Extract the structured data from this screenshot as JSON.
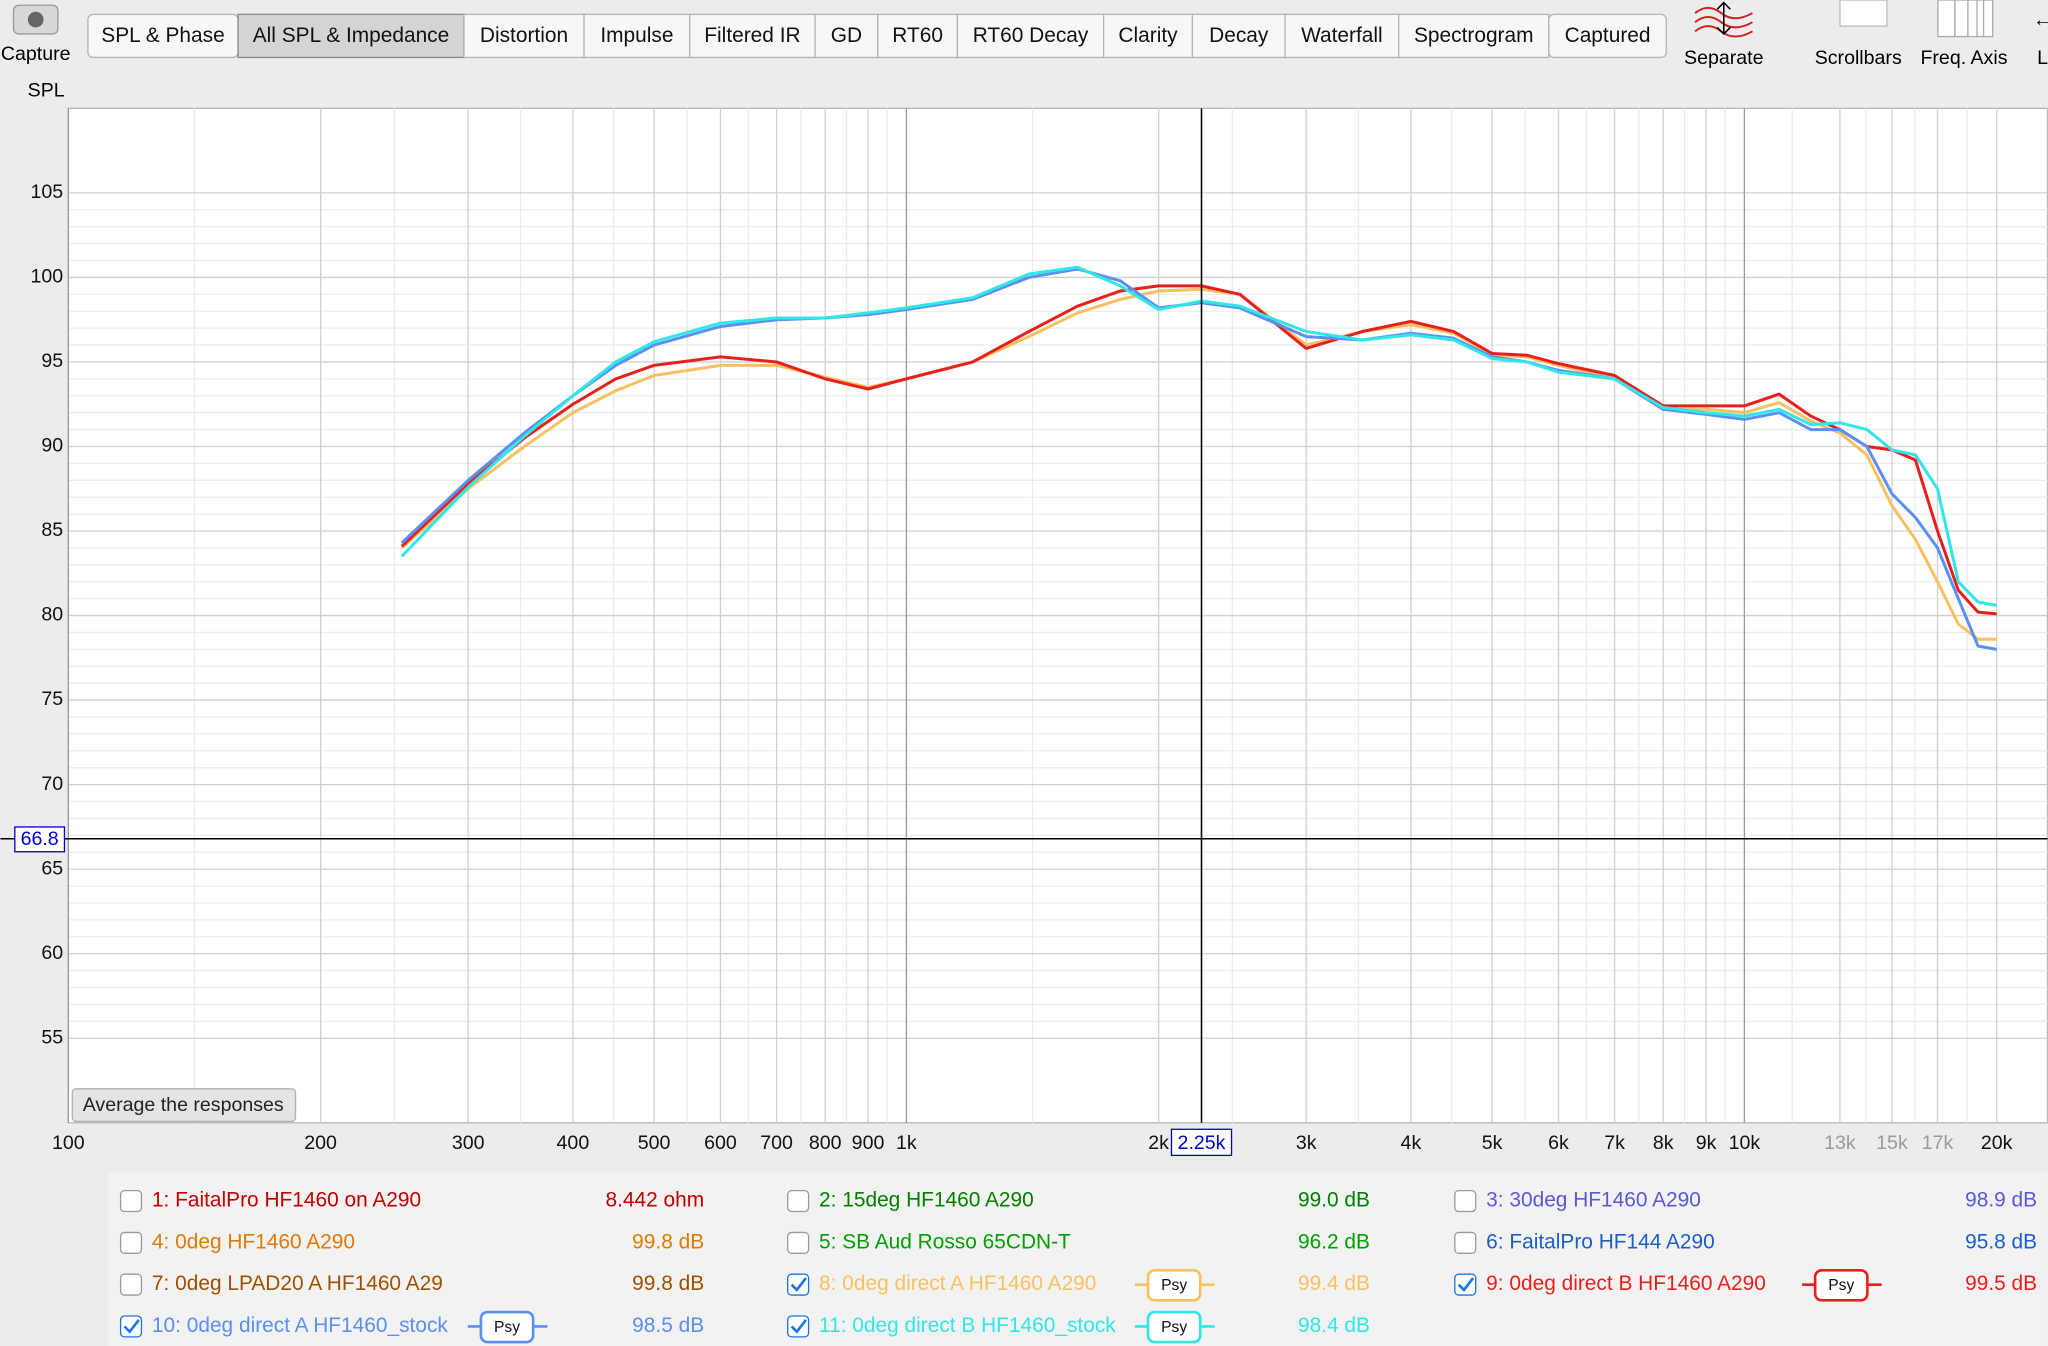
{
  "toolbar": {
    "capture": "Capture",
    "tabs": [
      "SPL & Phase",
      "All SPL & Impedance",
      "Distortion",
      "Impulse",
      "Filtered IR",
      "GD",
      "RT60",
      "RT60 Decay",
      "Clarity",
      "Decay",
      "Waterfall",
      "Spectrogram",
      "Captured"
    ],
    "selected_tab": 1,
    "tools": [
      "Separate",
      "Scrollbars",
      "Freq. Axis",
      "Li"
    ]
  },
  "chart_data": {
    "type": "line",
    "y_label": "SPL",
    "x_scale": "log",
    "grid": true,
    "xlim": [
      100,
      23000
    ],
    "ylim": [
      50,
      110
    ],
    "xticks": [
      100,
      200,
      300,
      400,
      500,
      600,
      700,
      800,
      900,
      {
        "value": 1000,
        "label": "1k"
      },
      {
        "value": 2000,
        "label": "2k"
      },
      {
        "value": 3000,
        "label": "3k"
      },
      {
        "value": 4000,
        "label": "4k"
      },
      {
        "value": 5000,
        "label": "5k"
      },
      {
        "value": 6000,
        "label": "6k"
      },
      {
        "value": 7000,
        "label": "7k"
      },
      {
        "value": 8000,
        "label": "8k"
      },
      {
        "value": 9000,
        "label": "9k"
      },
      {
        "value": 10000,
        "label": "10k"
      },
      {
        "value": 13000,
        "label": "13k"
      },
      {
        "value": 15000,
        "label": "15k"
      },
      {
        "value": 17000,
        "label": "17k"
      },
      {
        "value": 20000,
        "label": "20k"
      }
    ],
    "yticks": [
      55,
      60,
      65,
      70,
      75,
      80,
      85,
      90,
      95,
      100,
      105
    ],
    "cursor": {
      "x": {
        "value": 2250,
        "label": "2.25k"
      },
      "y": 66.8
    },
    "x": [
      250,
      300,
      350,
      400,
      450,
      500,
      600,
      700,
      800,
      900,
      1000,
      1200,
      1400,
      1600,
      1800,
      2000,
      2250,
      2500,
      3000,
      3500,
      4000,
      4500,
      5000,
      5500,
      6000,
      7000,
      8000,
      9000,
      10000,
      11000,
      12000,
      13000,
      14000,
      15000,
      16000,
      17000,
      18000,
      19000,
      20000
    ],
    "series": [
      {
        "name": "8: 0deg direct A HF1460 A290",
        "color": "#f8c060",
        "values": [
          84.0,
          87.5,
          90.0,
          92.0,
          93.3,
          94.2,
          94.8,
          94.8,
          94.1,
          93.5,
          94.0,
          95.0,
          96.5,
          97.9,
          98.7,
          99.2,
          99.3,
          99.0,
          96.0,
          96.8,
          97.2,
          96.7,
          95.4,
          95.3,
          94.8,
          94.0,
          92.2,
          92.2,
          92.0,
          92.6,
          91.5,
          90.8,
          89.5,
          86.5,
          84.5,
          82.0,
          79.5,
          78.6,
          78.6
        ]
      },
      {
        "name": "9: 0deg direct B HF1460 A290",
        "color": "#e8201c",
        "values": [
          84.1,
          87.8,
          90.5,
          92.5,
          94.0,
          94.8,
          95.3,
          95.0,
          94.0,
          93.4,
          94.0,
          95.0,
          96.8,
          98.3,
          99.2,
          99.5,
          99.5,
          99.0,
          95.8,
          96.8,
          97.4,
          96.8,
          95.5,
          95.4,
          94.9,
          94.2,
          92.4,
          92.4,
          92.4,
          93.1,
          91.8,
          91.0,
          90.0,
          89.8,
          89.2,
          85.0,
          81.5,
          80.2,
          80.1
        ]
      },
      {
        "name": "10: 0deg direct A HF1460_stock",
        "color": "#5b8ff0",
        "values": [
          84.3,
          88.0,
          90.8,
          93.0,
          94.8,
          96.0,
          97.1,
          97.5,
          97.6,
          97.8,
          98.1,
          98.7,
          100.0,
          100.5,
          99.8,
          98.2,
          98.5,
          98.2,
          96.5,
          96.3,
          96.7,
          96.4,
          95.3,
          95.0,
          94.5,
          94.0,
          92.2,
          91.9,
          91.6,
          92.0,
          91.0,
          91.0,
          90.0,
          87.2,
          85.8,
          84.0,
          81.0,
          78.2,
          78.0
        ]
      },
      {
        "name": "11: 0deg direct B HF1460_stock",
        "color": "#30e6e6",
        "values": [
          83.5,
          87.6,
          90.6,
          93.0,
          95.0,
          96.2,
          97.3,
          97.6,
          97.6,
          97.9,
          98.2,
          98.8,
          100.2,
          100.6,
          99.5,
          98.1,
          98.6,
          98.3,
          96.8,
          96.3,
          96.6,
          96.3,
          95.2,
          95.0,
          94.4,
          94.0,
          92.3,
          92.0,
          91.8,
          92.2,
          91.3,
          91.4,
          91.0,
          89.8,
          89.5,
          87.5,
          82.0,
          80.8,
          80.6
        ]
      }
    ]
  },
  "button": "Average the responses",
  "legend": [
    {
      "label": "1: FaitalPro HF1460 on A290",
      "value": "8.442 ohm",
      "checked": false,
      "color": "#c00000"
    },
    {
      "label": "2: 15deg HF1460 A290",
      "value": "99.0 dB",
      "checked": false,
      "color": "#008000"
    },
    {
      "label": "3: 30deg HF1460 A290",
      "value": "98.9 dB",
      "checked": false,
      "color": "#5a5ad6"
    },
    {
      "label": "4: 0deg HF1460 A290",
      "value": "99.8 dB",
      "checked": false,
      "color": "#e07a00"
    },
    {
      "label": "5: SB Aud Rosso 65CDN-T",
      "value": "96.2 dB",
      "checked": false,
      "color": "#00a000"
    },
    {
      "label": "6: FaitalPro HF144 A290",
      "value": "95.8 dB",
      "checked": false,
      "color": "#1a5fcc"
    },
    {
      "label": "7: 0deg LPAD20 A HF1460 A29",
      "value": "99.8 dB",
      "checked": false,
      "color": "#a05000"
    },
    {
      "label": "8: 0deg direct A HF1460 A290",
      "value": "99.4 dB",
      "checked": true,
      "color": "#f8c060",
      "psy": "Psy"
    },
    {
      "label": "9: 0deg direct B HF1460 A290",
      "value": "99.5 dB",
      "checked": true,
      "color": "#e8201c",
      "psy": "Psy"
    },
    {
      "label": "10: 0deg direct A HF1460_stock",
      "value": "98.5 dB",
      "checked": true,
      "color": "#5b8ff0",
      "psy": "Psy"
    },
    {
      "label": "11: 0deg direct B HF1460_stock",
      "value": "98.4 dB",
      "checked": true,
      "color": "#30e6e6",
      "psy": "Psy"
    }
  ]
}
